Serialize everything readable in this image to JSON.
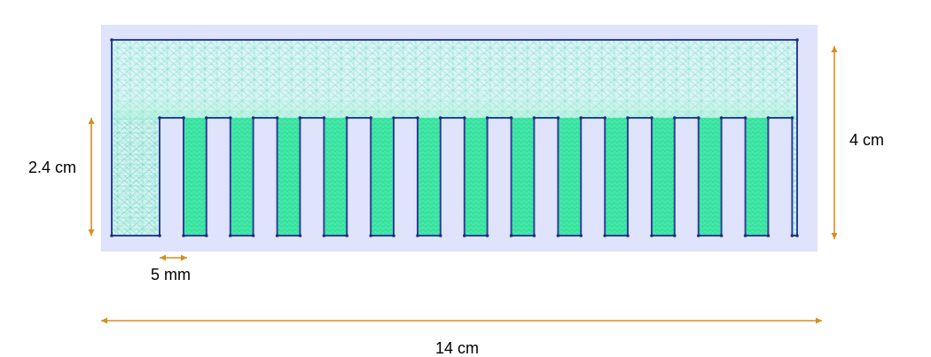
{
  "diagram": {
    "colors": {
      "frame_background": "#dfe3fb",
      "mesh_fill": "#dff3f6",
      "mesh_dense": "#44eaa8",
      "mesh_line": "#3ed8b6",
      "outline": "#2f3f9a",
      "node": "#1f2f7a",
      "dimension_arrow": "#d58f20"
    },
    "fin_count": 14,
    "dimensions": {
      "total_width_label": "14 cm",
      "total_height_label": "4 cm",
      "fin_height_label": "2.4 cm",
      "gap_width_label": "5 mm"
    }
  }
}
